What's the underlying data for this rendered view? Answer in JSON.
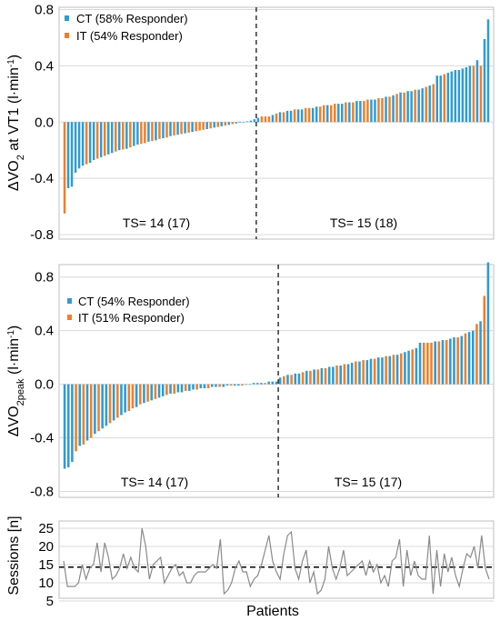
{
  "chart_data": [
    {
      "type": "bar",
      "panel": "top",
      "ylabel": {
        "prefix": "ΔVO",
        "sub": "2",
        "mid": " at VT1 (l·min",
        "sup": "-1",
        "suffix": ")"
      },
      "ylim": [
        -0.8,
        0.8
      ],
      "yticks": [
        "0.8",
        "0.4",
        "0.0",
        "-0.4",
        "-0.8"
      ],
      "grid": true,
      "legend_position": "top-left",
      "legend": [
        {
          "name": "CT (58% Responder)",
          "color": "#2E9BD6"
        },
        {
          "name": "IT (54% Responder)",
          "color": "#F07F2A"
        }
      ],
      "ts_labels": [
        "TS= 14 (17)",
        "TS= 15 (18)"
      ],
      "divider_index": 53,
      "values": [
        -0.65,
        -0.47,
        -0.46,
        -0.36,
        -0.33,
        -0.31,
        -0.3,
        -0.29,
        -0.27,
        -0.26,
        -0.25,
        -0.24,
        -0.23,
        -0.22,
        -0.21,
        -0.2,
        -0.195,
        -0.19,
        -0.18,
        -0.17,
        -0.16,
        -0.155,
        -0.15,
        -0.14,
        -0.135,
        -0.13,
        -0.12,
        -0.115,
        -0.11,
        -0.1,
        -0.095,
        -0.09,
        -0.085,
        -0.08,
        -0.075,
        -0.07,
        -0.065,
        -0.06,
        -0.055,
        -0.05,
        -0.045,
        -0.04,
        -0.035,
        -0.03,
        -0.025,
        -0.02,
        -0.015,
        -0.01,
        -0.005,
        0.0,
        0.005,
        0.01,
        0.02,
        0.03,
        0.04,
        0.04,
        0.04,
        0.05,
        0.06,
        0.07,
        0.07,
        0.08,
        0.08,
        0.09,
        0.09,
        0.09,
        0.1,
        0.1,
        0.1,
        0.11,
        0.11,
        0.12,
        0.12,
        0.12,
        0.13,
        0.13,
        0.13,
        0.14,
        0.14,
        0.14,
        0.15,
        0.15,
        0.15,
        0.16,
        0.16,
        0.16,
        0.17,
        0.17,
        0.18,
        0.18,
        0.19,
        0.2,
        0.21,
        0.21,
        0.22,
        0.22,
        0.23,
        0.23,
        0.24,
        0.25,
        0.26,
        0.27,
        0.33,
        0.33,
        0.34,
        0.35,
        0.36,
        0.37,
        0.37,
        0.38,
        0.39,
        0.4,
        0.4,
        0.44,
        0.4,
        0.59,
        0.73
      ],
      "groups": [
        "IT",
        "CT",
        "CT",
        "CT",
        "CT",
        "CT",
        "IT",
        "CT",
        "CT",
        "IT",
        "CT",
        "IT",
        "CT",
        "CT",
        "IT",
        "CT",
        "IT",
        "CT",
        "IT",
        "CT",
        "CT",
        "IT",
        "IT",
        "CT",
        "IT",
        "CT",
        "IT",
        "CT",
        "IT",
        "CT",
        "IT",
        "CT",
        "IT",
        "CT",
        "IT",
        "CT",
        "IT",
        "IT",
        "IT",
        "CT",
        "IT",
        "CT",
        "IT",
        "CT",
        "IT",
        "CT",
        "IT",
        "CT",
        "CT",
        "CT",
        "CT",
        "CT",
        "CT",
        "CT",
        "IT",
        "IT",
        "IT",
        "CT",
        "IT",
        "CT",
        "IT",
        "CT",
        "CT",
        "IT",
        "CT",
        "CT",
        "IT",
        "IT",
        "CT",
        "CT",
        "IT",
        "IT",
        "CT",
        "IT",
        "IT",
        "CT",
        "CT",
        "IT",
        "CT",
        "IT",
        "CT",
        "CT",
        "IT",
        "IT",
        "CT",
        "CT",
        "IT",
        "IT",
        "CT",
        "IT",
        "CT",
        "IT",
        "CT",
        "IT",
        "CT",
        "CT",
        "IT",
        "CT",
        "CT",
        "IT",
        "CT",
        "IT",
        "CT",
        "CT",
        "IT",
        "CT",
        "CT",
        "CT",
        "CT",
        "CT",
        "CT",
        "CT",
        "IT",
        "CT",
        "IT",
        "CT",
        "CT"
      ]
    },
    {
      "type": "bar",
      "panel": "middle",
      "ylabel": {
        "prefix": "ΔVO",
        "sub": "2peak",
        "mid": " (l·min",
        "sup": "-1",
        "suffix": ")"
      },
      "ylim": [
        -0.8,
        0.9
      ],
      "yticks": [
        "0.8",
        "0.4",
        "0.0",
        "-0.4",
        "-0.8"
      ],
      "grid": true,
      "legend_position": "upper-left",
      "legend": [
        {
          "name": "CT (54% Responder)",
          "color": "#2E9BD6"
        },
        {
          "name": "IT (51% Responder)",
          "color": "#F07F2A"
        }
      ],
      "ts_labels": [
        "TS= 14 (17)",
        "TS= 15 (17)"
      ],
      "divider_index": 57,
      "values": [
        -0.63,
        -0.62,
        -0.58,
        -0.5,
        -0.46,
        -0.45,
        -0.42,
        -0.4,
        -0.37,
        -0.35,
        -0.33,
        -0.31,
        -0.29,
        -0.27,
        -0.25,
        -0.23,
        -0.21,
        -0.2,
        -0.18,
        -0.17,
        -0.15,
        -0.14,
        -0.13,
        -0.12,
        -0.11,
        -0.1,
        -0.09,
        -0.08,
        -0.07,
        -0.07,
        -0.06,
        -0.06,
        -0.05,
        -0.05,
        -0.04,
        -0.04,
        -0.03,
        -0.03,
        -0.03,
        -0.02,
        -0.02,
        -0.02,
        -0.02,
        -0.01,
        -0.01,
        -0.01,
        -0.01,
        -0.01,
        0.0,
        0.0,
        0.01,
        0.01,
        0.01,
        0.01,
        0.02,
        0.02,
        0.02,
        0.05,
        0.06,
        0.07,
        0.07,
        0.08,
        0.08,
        0.09,
        0.1,
        0.1,
        0.11,
        0.11,
        0.12,
        0.12,
        0.13,
        0.13,
        0.14,
        0.14,
        0.15,
        0.15,
        0.16,
        0.17,
        0.17,
        0.18,
        0.18,
        0.19,
        0.19,
        0.2,
        0.2,
        0.21,
        0.21,
        0.22,
        0.22,
        0.23,
        0.24,
        0.25,
        0.26,
        0.27,
        0.31,
        0.31,
        0.31,
        0.31,
        0.32,
        0.32,
        0.33,
        0.33,
        0.34,
        0.35,
        0.35,
        0.36,
        0.38,
        0.39,
        0.4,
        0.45,
        0.47,
        0.66,
        0.91
      ],
      "groups": [
        "CT",
        "CT",
        "CT",
        "IT",
        "CT",
        "IT",
        "CT",
        "IT",
        "CT",
        "IT",
        "CT",
        "CT",
        "IT",
        "CT",
        "IT",
        "CT",
        "CT",
        "IT",
        "IT",
        "CT",
        "IT",
        "CT",
        "IT",
        "CT",
        "IT",
        "CT",
        "CT",
        "IT",
        "CT",
        "IT",
        "CT",
        "CT",
        "IT",
        "CT",
        "CT",
        "IT",
        "CT",
        "CT",
        "IT",
        "CT",
        "CT",
        "IT",
        "CT",
        "CT",
        "IT",
        "CT",
        "CT",
        "IT",
        "CT",
        "CT",
        "CT",
        "CT",
        "CT",
        "IT",
        "CT",
        "CT",
        "CT",
        "CT",
        "IT",
        "CT",
        "IT",
        "CT",
        "CT",
        "IT",
        "CT",
        "IT",
        "CT",
        "IT",
        "CT",
        "IT",
        "CT",
        "CT",
        "IT",
        "CT",
        "IT",
        "CT",
        "CT",
        "IT",
        "CT",
        "IT",
        "CT",
        "CT",
        "IT",
        "CT",
        "CT",
        "IT",
        "CT",
        "IT",
        "CT",
        "IT",
        "CT",
        "CT",
        "IT",
        "CT",
        "CT",
        "IT",
        "IT",
        "IT",
        "CT",
        "IT",
        "CT",
        "IT",
        "CT",
        "CT",
        "IT",
        "CT",
        "IT",
        "CT",
        "CT",
        "IT",
        "CT",
        "IT",
        "CT"
      ]
    },
    {
      "type": "line",
      "panel": "bottom",
      "ylabel": "Sessions [n]",
      "xlabel": "Patients",
      "ylim": [
        5,
        25
      ],
      "yticks": [
        "25",
        "20",
        "15",
        "10",
        "5"
      ],
      "grid": true,
      "reference_line": 14.3,
      "series_color": "#8a8a8a",
      "values": [
        16,
        9,
        9,
        9,
        10,
        15,
        11,
        14,
        15,
        21,
        13,
        21,
        17,
        11,
        12,
        14,
        18,
        14,
        17,
        14,
        13,
        25,
        20,
        11,
        15,
        16,
        17,
        10,
        12,
        14,
        15,
        12,
        13,
        10,
        10,
        12,
        13,
        13,
        13,
        14,
        15,
        14,
        22,
        7,
        8,
        10,
        14,
        16,
        13,
        13,
        9,
        11,
        12,
        15,
        19,
        23,
        16,
        13,
        11,
        18,
        23,
        24,
        14,
        11,
        16,
        19,
        10,
        13,
        7,
        8,
        11,
        20,
        14,
        11,
        14,
        19,
        12,
        13,
        14,
        15,
        16,
        12,
        16,
        13,
        15,
        10,
        12,
        9,
        16,
        17,
        22,
        9,
        19,
        12,
        16,
        12,
        11,
        11,
        23,
        7,
        19,
        9,
        18,
        13,
        17,
        12,
        9,
        14,
        18,
        17,
        20,
        14,
        23,
        14,
        11
      ]
    }
  ]
}
